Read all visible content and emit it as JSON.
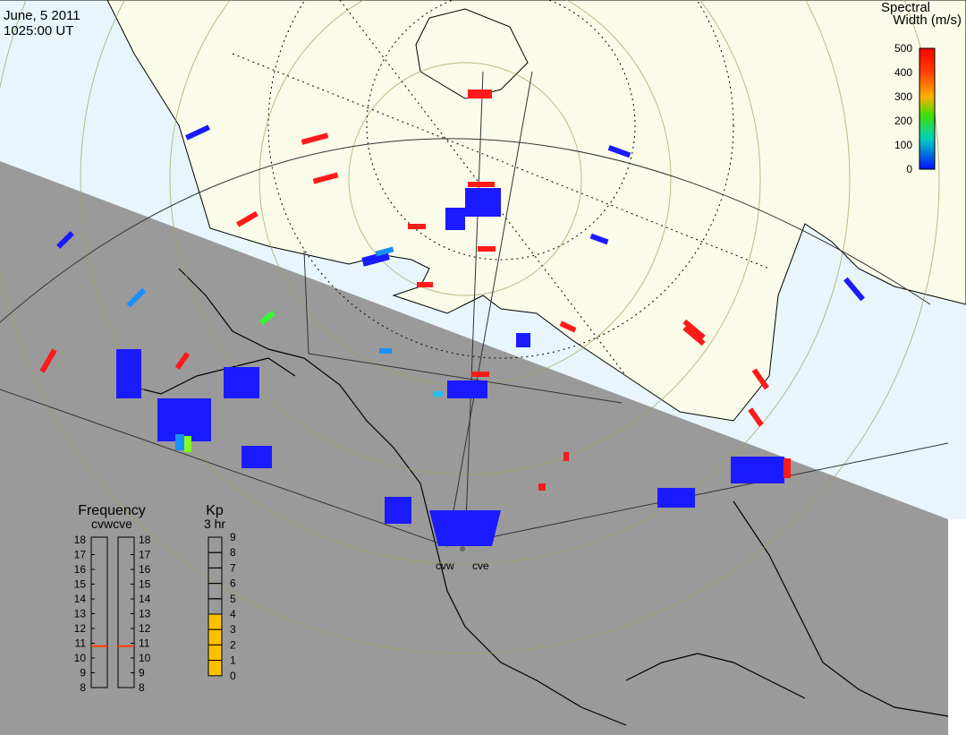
{
  "header": {
    "date": "June, 5 2011",
    "time": "1025:00 UT"
  },
  "colorbar": {
    "title_line1": "Spectral",
    "title_line2": "Width (m/s)",
    "ticks": [
      "500",
      "400",
      "300",
      "200",
      "100",
      "0"
    ]
  },
  "radars": {
    "west_label": "cvw",
    "east_label": "cve"
  },
  "frequency_panel": {
    "title": "Frequency",
    "subtitle": "cvwcve",
    "scale": [
      "18",
      "17",
      "16",
      "15",
      "14",
      "13",
      "12",
      "11",
      "10",
      "9",
      "8"
    ],
    "cvw_value": 10.8,
    "cve_value": 10.8,
    "marker_color": "#ff4000"
  },
  "kp_panel": {
    "title": "Kp",
    "subtitle": "3 hr",
    "scale": [
      "9",
      "8",
      "7",
      "6",
      "5",
      "4",
      "3",
      "2",
      "1",
      "0"
    ],
    "value": 4,
    "fill_color": "#ffc000"
  },
  "colors": {
    "night": "#9a9a9a",
    "day_ocean": "#e8f6fc",
    "day_land": "#fbfbe9",
    "blue": "#1a1aff",
    "red": "#ff1a1a"
  }
}
